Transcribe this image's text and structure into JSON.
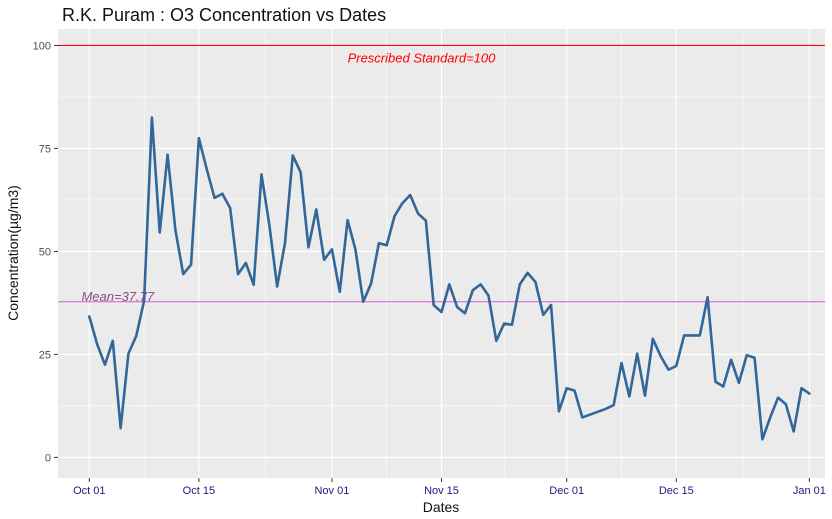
{
  "chart_data": {
    "type": "line",
    "title": "R.K. Puram : O3 Concentration vs Dates",
    "xlabel": "Dates",
    "ylabel": "Concentration(µg/m3)",
    "x_range": [
      "2015-09-27",
      "2016-01-03"
    ],
    "ylim": [
      -5,
      104
    ],
    "grid": true,
    "y_ticks": [
      0,
      25,
      50,
      75,
      100
    ],
    "x_ticks": [
      {
        "date": "2015-10-01",
        "label": "Oct 01"
      },
      {
        "date": "2015-10-15",
        "label": "Oct 15"
      },
      {
        "date": "2015-11-01",
        "label": "Nov 01"
      },
      {
        "date": "2015-11-15",
        "label": "Nov 15"
      },
      {
        "date": "2015-12-01",
        "label": "Dec 01"
      },
      {
        "date": "2015-12-15",
        "label": "Dec 15"
      },
      {
        "date": "2016-01-01",
        "label": "Jan 01"
      }
    ],
    "series": [
      {
        "color": "#336699",
        "points": [
          [
            "2015-10-01",
            34.2
          ],
          [
            "2015-10-02",
            27.5
          ],
          [
            "2015-10-03",
            22.5
          ],
          [
            "2015-10-04",
            28.3
          ],
          [
            "2015-10-05",
            7.1
          ],
          [
            "2015-10-06",
            25.2
          ],
          [
            "2015-10-07",
            29.5
          ],
          [
            "2015-10-08",
            38.0
          ],
          [
            "2015-10-09",
            82.5
          ],
          [
            "2015-10-10",
            54.6
          ],
          [
            "2015-10-11",
            73.5
          ],
          [
            "2015-10-12",
            55.2
          ],
          [
            "2015-10-13",
            44.5
          ],
          [
            "2015-10-14",
            46.8
          ],
          [
            "2015-10-15",
            77.5
          ],
          [
            "2015-10-16",
            70.0
          ],
          [
            "2015-10-17",
            63.0
          ],
          [
            "2015-10-18",
            64.0
          ],
          [
            "2015-10-19",
            60.5
          ],
          [
            "2015-10-20",
            44.5
          ],
          [
            "2015-10-21",
            47.2
          ],
          [
            "2015-10-22",
            41.9
          ],
          [
            "2015-10-23",
            68.7
          ],
          [
            "2015-10-24",
            56.5
          ],
          [
            "2015-10-25",
            41.5
          ],
          [
            "2015-10-26",
            52.0
          ],
          [
            "2015-10-27",
            73.3
          ],
          [
            "2015-10-28",
            69.2
          ],
          [
            "2015-10-29",
            51.0
          ],
          [
            "2015-10-30",
            60.2
          ],
          [
            "2015-10-31",
            48.0
          ],
          [
            "2015-11-01",
            50.5
          ],
          [
            "2015-11-02",
            40.2
          ],
          [
            "2015-11-03",
            57.6
          ],
          [
            "2015-11-04",
            50.5
          ],
          [
            "2015-11-05",
            37.8
          ],
          [
            "2015-11-06",
            42.2
          ],
          [
            "2015-11-07",
            52.0
          ],
          [
            "2015-11-08",
            51.5
          ],
          [
            "2015-11-09",
            58.6
          ],
          [
            "2015-11-10",
            61.7
          ],
          [
            "2015-11-11",
            63.7
          ],
          [
            "2015-11-12",
            59.2
          ],
          [
            "2015-11-13",
            57.5
          ],
          [
            "2015-11-14",
            37.0
          ],
          [
            "2015-11-15",
            35.3
          ],
          [
            "2015-11-16",
            42.0
          ],
          [
            "2015-11-17",
            36.5
          ],
          [
            "2015-11-18",
            35.0
          ],
          [
            "2015-11-19",
            40.6
          ],
          [
            "2015-11-20",
            42.0
          ],
          [
            "2015-11-21",
            39.3
          ],
          [
            "2015-11-22",
            28.3
          ],
          [
            "2015-11-23",
            32.5
          ],
          [
            "2015-11-24",
            32.2
          ],
          [
            "2015-11-25",
            42.0
          ],
          [
            "2015-11-26",
            44.8
          ],
          [
            "2015-11-27",
            42.6
          ],
          [
            "2015-11-28",
            34.6
          ],
          [
            "2015-11-29",
            37.0
          ],
          [
            "2015-11-30",
            11.2
          ],
          [
            "2015-12-01",
            16.8
          ],
          [
            "2015-12-02",
            16.2
          ],
          [
            "2015-12-03",
            9.7
          ],
          [
            "2015-12-06",
            11.8
          ],
          [
            "2015-12-07",
            12.7
          ],
          [
            "2015-12-08",
            22.9
          ],
          [
            "2015-12-09",
            14.8
          ],
          [
            "2015-12-10",
            25.2
          ],
          [
            "2015-12-11",
            15.0
          ],
          [
            "2015-12-12",
            28.8
          ],
          [
            "2015-12-13",
            24.6
          ],
          [
            "2015-12-14",
            21.3
          ],
          [
            "2015-12-15",
            22.2
          ],
          [
            "2015-12-16",
            29.6
          ],
          [
            "2015-12-18",
            29.6
          ],
          [
            "2015-12-19",
            38.9
          ],
          [
            "2015-12-20",
            18.4
          ],
          [
            "2015-12-21",
            17.2
          ],
          [
            "2015-12-22",
            23.7
          ],
          [
            "2015-12-23",
            18.1
          ],
          [
            "2015-12-24",
            24.8
          ],
          [
            "2015-12-25",
            24.2
          ],
          [
            "2015-12-26",
            4.4
          ],
          [
            "2015-12-27",
            9.7
          ],
          [
            "2015-12-28",
            14.5
          ],
          [
            "2015-12-29",
            12.9
          ],
          [
            "2015-12-30",
            6.3
          ],
          [
            "2015-12-31",
            16.8
          ],
          [
            "2016-01-01",
            15.5
          ]
        ]
      }
    ],
    "reference_lines": [
      {
        "value": 100,
        "label": "Prescribed Standard=100",
        "color": "#ff0000",
        "label_date": "2015-11-03"
      },
      {
        "value": 37.77,
        "label": "Mean=37.77",
        "color": "#cc66cc",
        "label_color": "#8b4a8b",
        "label_date": "2015-09-30"
      }
    ],
    "colors": {
      "panel_background": "#ebebeb",
      "gridline": "#ffffff",
      "series_line": "#336699",
      "standard_line": "#ff0000",
      "mean_line": "#cc66cc"
    }
  }
}
